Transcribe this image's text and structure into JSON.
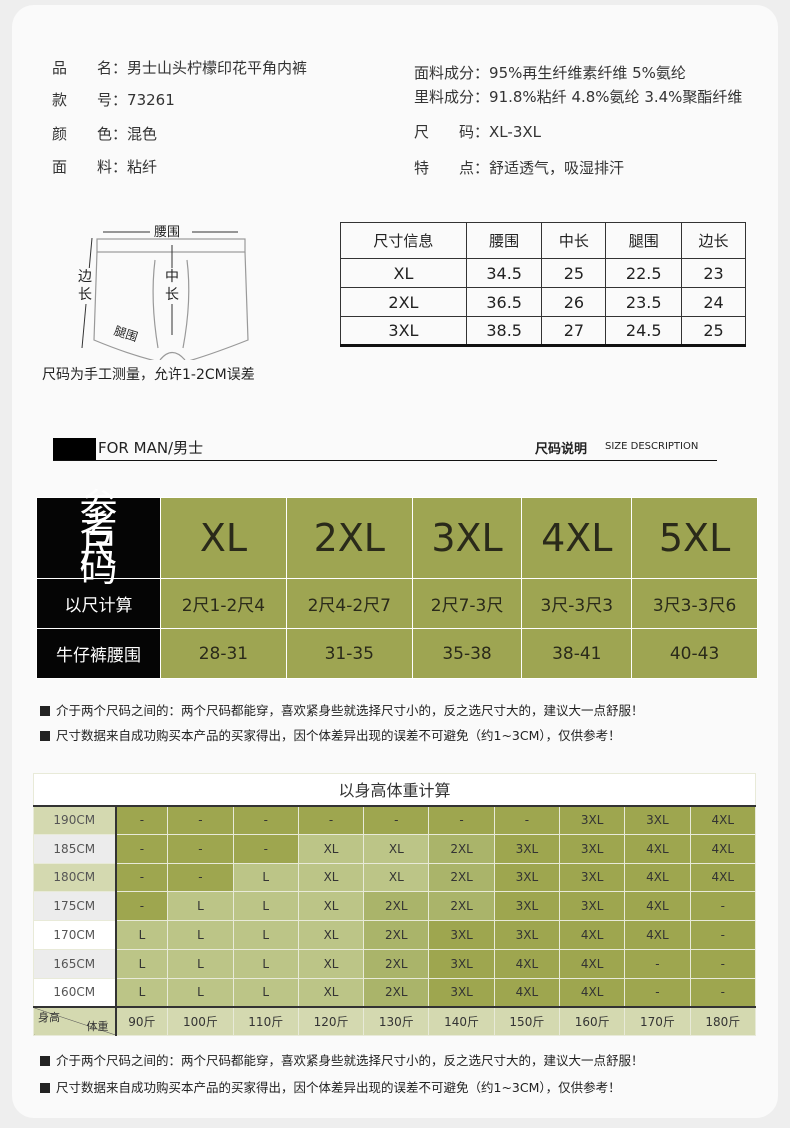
{
  "info_left": [
    {
      "label": "品　　名",
      "value": "男士山头柠檬印花平角内裤"
    },
    {
      "label": "款　　号",
      "value": "73261"
    },
    {
      "label": "颜　　色",
      "value": "混色"
    },
    {
      "label": "面　　料",
      "value": "粘纤"
    }
  ],
  "info_right": [
    {
      "label": "面料成分",
      "value": "95%再生纤维素纤维 5%氨纶"
    },
    {
      "label": "里料成分",
      "value": "91.8%粘纤 4.8%氨纶 3.4%聚酯纤维"
    },
    {
      "label": "尺　　码",
      "value": "XL-3XL"
    },
    {
      "label": "特　　点",
      "value": "舒适透气，吸湿排汗"
    }
  ],
  "diagram": {
    "waist": "腰围",
    "side": "边长",
    "mid": "中长",
    "leg": "腿围",
    "note": "尺码为手工测量，允许1-2CM误差"
  },
  "spec_table": {
    "headers": [
      "尺寸信息",
      "腰围",
      "中长",
      "腿围",
      "边长"
    ],
    "rows": [
      [
        "XL",
        "34.5",
        "25",
        "22.5",
        "23"
      ],
      [
        "2XL",
        "36.5",
        "26",
        "23.5",
        "24"
      ],
      [
        "3XL",
        "38.5",
        "27",
        "24.5",
        "25"
      ]
    ]
  },
  "section": {
    "left": "FOR MAN/男士",
    "right_cn": "尺码说明",
    "right_en": "SIZE DESCRIPTION"
  },
  "size_chart": {
    "colors": {
      "green": "#9ea552",
      "black": "#050505"
    },
    "ref_label": "参考尺码",
    "sizes": [
      "XL",
      "2XL",
      "3XL",
      "4XL",
      "5XL"
    ],
    "chi_label": "以尺计算",
    "chi": [
      "2尺1-2尺4",
      "2尺4-2尺7",
      "2尺7-3尺",
      "3尺-3尺3",
      "3尺3-3尺6"
    ],
    "jeans_label": "牛仔裤腰围",
    "jeans": [
      "28-31",
      "31-35",
      "35-38",
      "38-41",
      "40-43"
    ]
  },
  "notes": [
    "介于两个尺码之间的：两个尺码都能穿，喜欢紧身些就选择尺寸小的，反之选尺寸大的，建议大一点舒服！",
    "尺寸数据来自成功购买本产品的买家得出，因个体差异出现的误差不可避免（约1~3CM），仅供参考！"
  ],
  "hw_grid": {
    "title": "以身高体重计算",
    "corner_top": "身高",
    "corner_bottom": "体重",
    "weights": [
      "90斤",
      "100斤",
      "110斤",
      "120斤",
      "130斤",
      "140斤",
      "150斤",
      "160斤",
      "170斤",
      "180斤"
    ],
    "rows": [
      {
        "height": "190CM",
        "sizes": [
          "-",
          "-",
          "-",
          "-",
          "-",
          "-",
          "-",
          "3XL",
          "3XL",
          "4XL"
        ]
      },
      {
        "height": "185CM",
        "sizes": [
          "-",
          "-",
          "-",
          "XL",
          "XL",
          "2XL",
          "3XL",
          "3XL",
          "4XL",
          "4XL"
        ]
      },
      {
        "height": "180CM",
        "sizes": [
          "-",
          "-",
          "L",
          "XL",
          "XL",
          "2XL",
          "3XL",
          "3XL",
          "4XL",
          "4XL"
        ]
      },
      {
        "height": "175CM",
        "sizes": [
          "-",
          "L",
          "L",
          "XL",
          "2XL",
          "2XL",
          "3XL",
          "3XL",
          "4XL",
          "-"
        ]
      },
      {
        "height": "170CM",
        "sizes": [
          "L",
          "L",
          "L",
          "XL",
          "2XL",
          "3XL",
          "3XL",
          "4XL",
          "4XL",
          "-"
        ]
      },
      {
        "height": "165CM",
        "sizes": [
          "L",
          "L",
          "L",
          "XL",
          "2XL",
          "3XL",
          "4XL",
          "4XL",
          "-",
          "-"
        ]
      },
      {
        "height": "160CM",
        "sizes": [
          "L",
          "L",
          "L",
          "XL",
          "2XL",
          "3XL",
          "4XL",
          "4XL",
          "-",
          "-"
        ]
      }
    ]
  }
}
